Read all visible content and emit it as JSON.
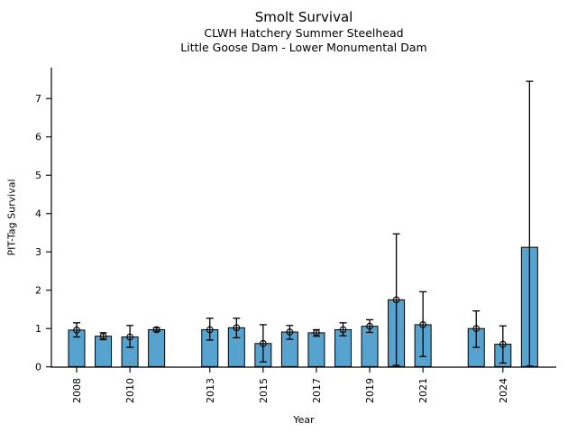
{
  "header": {
    "title": "Smolt Survival",
    "subtitle1": "CLWH Hatchery Summer Steelhead",
    "subtitle2": "Little Goose Dam - Lower Monumental Dam"
  },
  "chart_data": {
    "type": "bar",
    "title": "Smolt Survival",
    "subtitles": [
      "CLWH Hatchery Summer Steelhead",
      "Little Goose Dam - Lower Monumental Dam"
    ],
    "xlabel": "Year",
    "ylabel": "PIT-Tag Survival",
    "ylim": [
      0,
      7.8
    ],
    "xlim": [
      2007,
      2026
    ],
    "yticks": [
      0,
      1,
      2,
      3,
      4,
      5,
      6,
      7
    ],
    "xticks": [
      2008,
      2010,
      2013,
      2015,
      2017,
      2019,
      2021,
      2024
    ],
    "grid": false,
    "legend": "none",
    "bar_color": "#57A3D0",
    "bar_edge_color": "#000000",
    "errorbar_color": "#000000",
    "marker": "open-circle",
    "series": [
      {
        "name": "PIT-Tag Survival",
        "points": [
          {
            "year": 2008,
            "value": 0.96,
            "err_lo": 0.78,
            "err_hi": 1.15,
            "marker": true
          },
          {
            "year": 2009,
            "value": 0.8,
            "err_lo": 0.71,
            "err_hi": 0.89,
            "marker": true
          },
          {
            "year": 2010,
            "value": 0.78,
            "err_lo": 0.51,
            "err_hi": 1.08,
            "marker": true
          },
          {
            "year": 2011,
            "value": 0.97,
            "err_lo": 0.93,
            "err_hi": 1.02,
            "marker": true
          },
          {
            "year": 2013,
            "value": 0.97,
            "err_lo": 0.7,
            "err_hi": 1.27,
            "marker": true
          },
          {
            "year": 2014,
            "value": 1.02,
            "err_lo": 0.76,
            "err_hi": 1.27,
            "marker": true
          },
          {
            "year": 2015,
            "value": 0.61,
            "err_lo": 0.13,
            "err_hi": 1.1,
            "marker": true
          },
          {
            "year": 2016,
            "value": 0.91,
            "err_lo": 0.72,
            "err_hi": 1.08,
            "marker": true
          },
          {
            "year": 2017,
            "value": 0.89,
            "err_lo": 0.8,
            "err_hi": 0.97,
            "marker": true
          },
          {
            "year": 2018,
            "value": 0.97,
            "err_lo": 0.81,
            "err_hi": 1.15,
            "marker": true
          },
          {
            "year": 2019,
            "value": 1.06,
            "err_lo": 0.9,
            "err_hi": 1.23,
            "marker": true
          },
          {
            "year": 2020,
            "value": 1.75,
            "err_lo": 0.04,
            "err_hi": 3.47,
            "marker": true
          },
          {
            "year": 2021,
            "value": 1.1,
            "err_lo": 0.27,
            "err_hi": 1.96,
            "marker": true
          },
          {
            "year": 2023,
            "value": 1.0,
            "err_lo": 0.51,
            "err_hi": 1.46,
            "marker": true
          },
          {
            "year": 2024,
            "value": 0.59,
            "err_lo": 0.1,
            "err_hi": 1.07,
            "marker": true
          },
          {
            "year": 2025,
            "value": 3.12,
            "err_lo": 0.02,
            "err_hi": 7.45,
            "marker": false
          }
        ]
      }
    ]
  }
}
